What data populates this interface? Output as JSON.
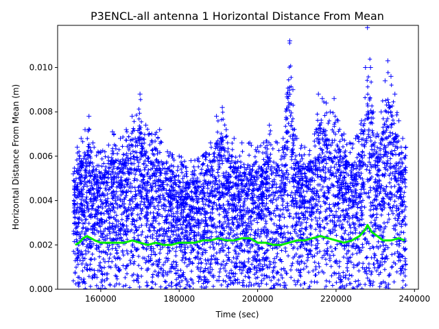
{
  "chart_data": {
    "type": "scatter",
    "title": "P3ENCL-all antenna 1 Horizontal Distance From Mean",
    "xlabel": "Time (sec)",
    "ylabel": "Horizontal Distance From Mean (m)",
    "xlim": [
      149000,
      241000
    ],
    "ylim": [
      0,
      0.0119
    ],
    "x_ticks": [
      {
        "value": 160000,
        "label": "160000"
      },
      {
        "value": 180000,
        "label": "180000"
      },
      {
        "value": 200000,
        "label": "200000"
      },
      {
        "value": 220000,
        "label": "220000"
      },
      {
        "value": 240000,
        "label": "240000"
      }
    ],
    "y_ticks": [
      {
        "value": 0,
        "label": "0.000"
      },
      {
        "value": 0.002,
        "label": "0.002"
      },
      {
        "value": 0.004,
        "label": "0.004"
      },
      {
        "value": 0.006,
        "label": "0.006"
      },
      {
        "value": 0.008,
        "label": "0.008"
      },
      {
        "value": 0.01,
        "label": "0.010"
      }
    ],
    "grid": false,
    "legend": "none",
    "colors": {
      "points": "#0000ff",
      "mean_line": "#00ee00"
    },
    "series": [
      {
        "kind": "scatter",
        "marker": "plus",
        "x_range": [
          153000,
          237800
        ],
        "upper_envelope": [
          [
            153000,
            0.0052
          ],
          [
            154000,
            0.0064
          ],
          [
            155000,
            0.0068
          ],
          [
            156000,
            0.0072
          ],
          [
            157000,
            0.0078
          ],
          [
            158000,
            0.0066
          ],
          [
            160000,
            0.0062
          ],
          [
            162000,
            0.0065
          ],
          [
            163000,
            0.0071
          ],
          [
            165000,
            0.0068
          ],
          [
            166500,
            0.0072
          ],
          [
            168000,
            0.0078
          ],
          [
            170000,
            0.0088
          ],
          [
            171500,
            0.0074
          ],
          [
            173000,
            0.007
          ],
          [
            175000,
            0.0072
          ],
          [
            177000,
            0.0062
          ],
          [
            180000,
            0.006
          ],
          [
            183000,
            0.0058
          ],
          [
            186000,
            0.006
          ],
          [
            188000,
            0.0066
          ],
          [
            189500,
            0.0078
          ],
          [
            191000,
            0.0082
          ],
          [
            192000,
            0.0072
          ],
          [
            194000,
            0.0068
          ],
          [
            196000,
            0.0066
          ],
          [
            198000,
            0.0066
          ],
          [
            200000,
            0.0064
          ],
          [
            201500,
            0.0066
          ],
          [
            203000,
            0.0074
          ],
          [
            205000,
            0.0066
          ],
          [
            206500,
            0.0068
          ],
          [
            207500,
            0.0088
          ],
          [
            208200,
            0.0112
          ],
          [
            209000,
            0.009
          ],
          [
            210000,
            0.0068
          ],
          [
            212000,
            0.0064
          ],
          [
            214500,
            0.007
          ],
          [
            215500,
            0.0088
          ],
          [
            216500,
            0.0086
          ],
          [
            217500,
            0.0084
          ],
          [
            218500,
            0.008
          ],
          [
            219500,
            0.0086
          ],
          [
            220500,
            0.0076
          ],
          [
            222000,
            0.007
          ],
          [
            223500,
            0.0066
          ],
          [
            225000,
            0.0068
          ],
          [
            226500,
            0.0076
          ],
          [
            227500,
            0.01
          ],
          [
            228000,
            0.0118
          ],
          [
            228800,
            0.01
          ],
          [
            229500,
            0.008
          ],
          [
            230500,
            0.007
          ],
          [
            231500,
            0.008
          ],
          [
            232500,
            0.0094
          ],
          [
            233200,
            0.0103
          ],
          [
            234000,
            0.0096
          ],
          [
            235000,
            0.0088
          ],
          [
            236000,
            0.0076
          ],
          [
            237000,
            0.0068
          ],
          [
            237800,
            0.0064
          ]
        ],
        "lower_bound": 0
      },
      {
        "kind": "line",
        "points": [
          [
            153500,
            0.002
          ],
          [
            154500,
            0.0021
          ],
          [
            155500,
            0.0023
          ],
          [
            156500,
            0.0024
          ],
          [
            157500,
            0.0023
          ],
          [
            158500,
            0.0022
          ],
          [
            160000,
            0.0021
          ],
          [
            162000,
            0.0021
          ],
          [
            164000,
            0.0021
          ],
          [
            166000,
            0.0021
          ],
          [
            168000,
            0.0022
          ],
          [
            170000,
            0.0021
          ],
          [
            172000,
            0.002
          ],
          [
            174000,
            0.0021
          ],
          [
            176000,
            0.002
          ],
          [
            178000,
            0.002
          ],
          [
            180000,
            0.0021
          ],
          [
            182000,
            0.0021
          ],
          [
            184000,
            0.0021
          ],
          [
            186000,
            0.0022
          ],
          [
            188000,
            0.0022
          ],
          [
            190000,
            0.0023
          ],
          [
            192000,
            0.0022
          ],
          [
            194000,
            0.0022
          ],
          [
            196000,
            0.0023
          ],
          [
            198000,
            0.0023
          ],
          [
            200000,
            0.0021
          ],
          [
            202000,
            0.0021
          ],
          [
            204000,
            0.002
          ],
          [
            206000,
            0.002
          ],
          [
            208000,
            0.0021
          ],
          [
            210000,
            0.0022
          ],
          [
            212000,
            0.0022
          ],
          [
            214000,
            0.0023
          ],
          [
            216000,
            0.0024
          ],
          [
            218000,
            0.0023
          ],
          [
            220000,
            0.0022
          ],
          [
            222000,
            0.0021
          ],
          [
            224000,
            0.0022
          ],
          [
            226000,
            0.0024
          ],
          [
            227500,
            0.0027
          ],
          [
            228000,
            0.0029
          ],
          [
            229000,
            0.0026
          ],
          [
            230500,
            0.0024
          ],
          [
            232000,
            0.0022
          ],
          [
            234000,
            0.0022
          ],
          [
            236000,
            0.0023
          ],
          [
            237500,
            0.0022
          ]
        ]
      }
    ]
  }
}
